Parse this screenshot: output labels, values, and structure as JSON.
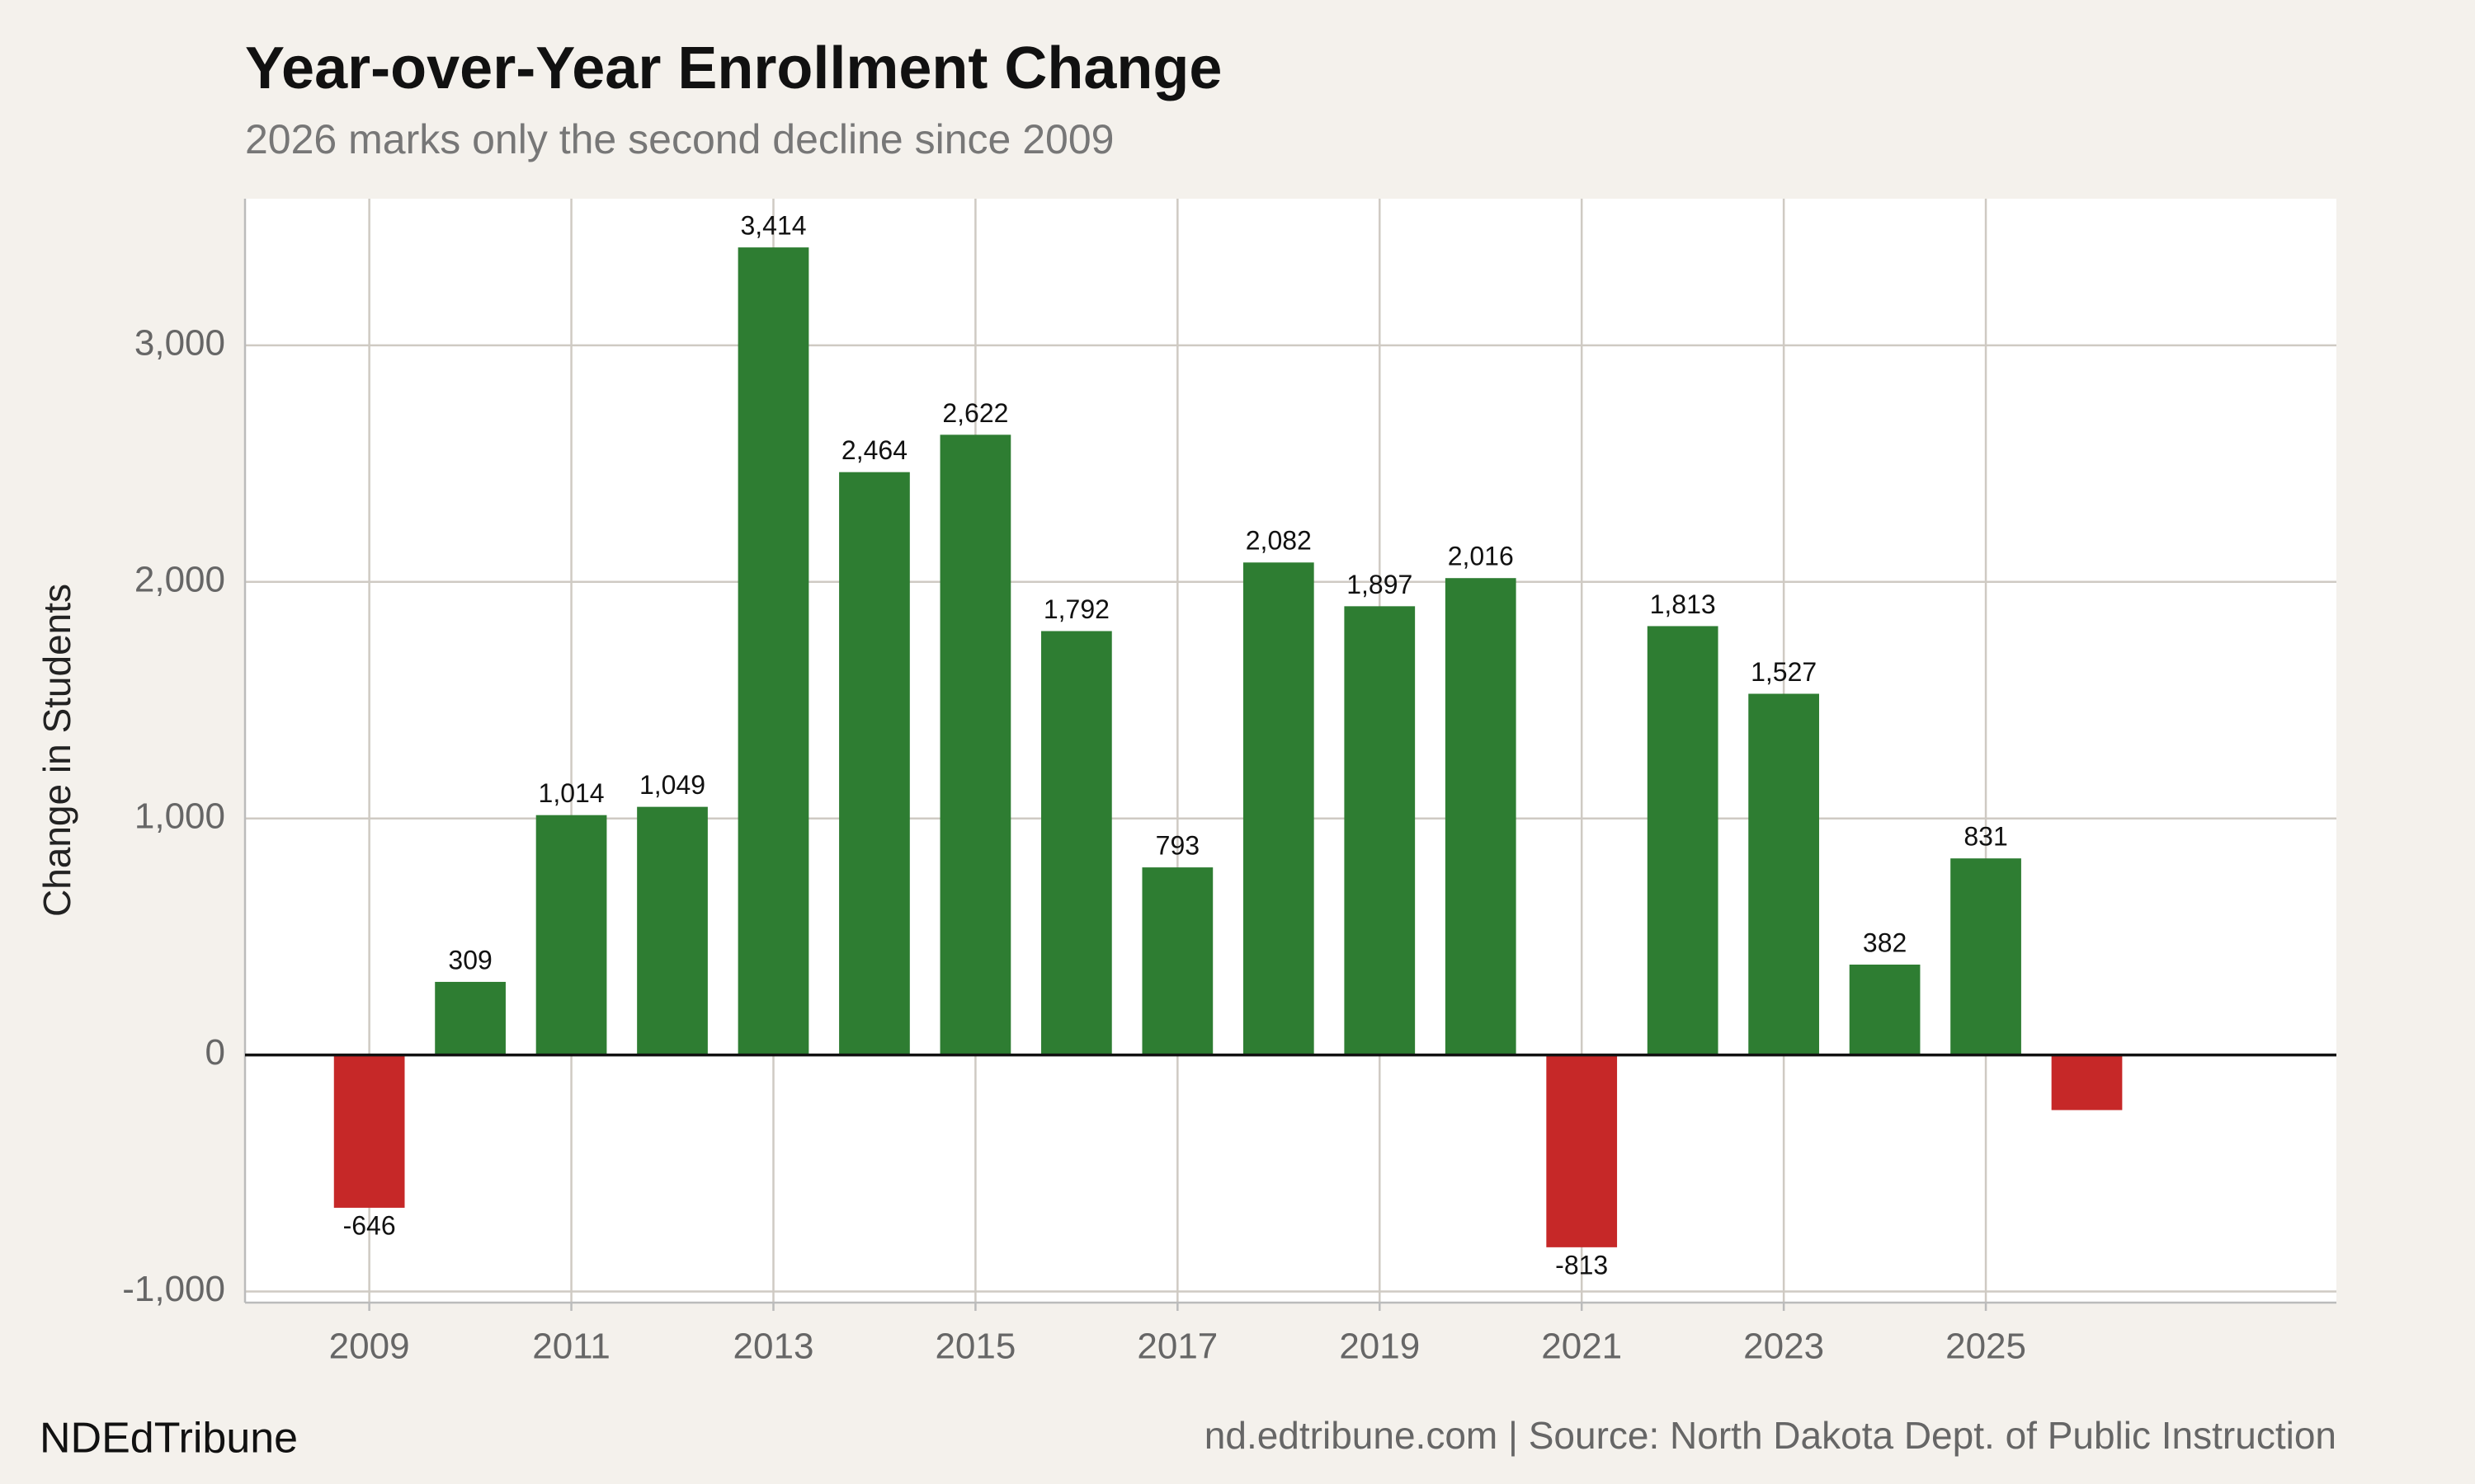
{
  "chart_data": {
    "type": "bar",
    "title": "Year-over-Year Enrollment Change",
    "subtitle": "2026 marks only the second decline since 2009",
    "y_label": "Change in Students",
    "brand": "NDEdTribune",
    "source": "nd.edtribune.com | Source: North Dakota Dept. of Public Instruction",
    "x": [
      2009,
      2010,
      2011,
      2012,
      2013,
      2014,
      2015,
      2016,
      2017,
      2018,
      2019,
      2020,
      2021,
      2022,
      2023,
      2024,
      2025,
      2026
    ],
    "values": [
      -646,
      309,
      1014,
      1049,
      3414,
      2464,
      2622,
      1792,
      793,
      2082,
      1897,
      2016,
      -813,
      1813,
      1527,
      382,
      831,
      -233
    ],
    "value_labels": [
      "-646",
      "309",
      "1,014",
      "1,049",
      "3,414",
      "2,464",
      "2,622",
      "1,792",
      "793",
      "2,082",
      "1,897",
      "2,016",
      "-813",
      "1,813",
      "1,527",
      "382",
      "831",
      null
    ],
    "positive_color": "#2e7d32",
    "negative_color": "#c62828",
    "xlim": [
      2007.77,
      2028.47
    ],
    "xticks": [
      2009,
      2011,
      2013,
      2015,
      2017,
      2019,
      2021,
      2023,
      2025
    ],
    "ylim": [
      -1047,
      3620
    ],
    "yticks": [
      {
        "value": -1000,
        "label": "-1,000"
      },
      0,
      {
        "value": 1000,
        "label": "1,000"
      },
      {
        "value": 2000,
        "label": "2,000"
      },
      {
        "value": 3000,
        "label": "3,000"
      }
    ],
    "grid": true
  }
}
